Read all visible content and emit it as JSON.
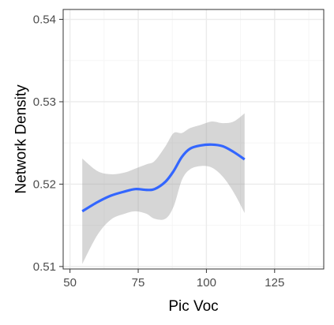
{
  "chart_data": {
    "type": "line",
    "title": "",
    "xlabel": "Pic Voc",
    "ylabel": "Network Density",
    "xlim": [
      47.5,
      143
    ],
    "ylim": [
      0.5097,
      0.5412
    ],
    "x_ticks": [
      50,
      75,
      100,
      125
    ],
    "x_tick_labels": [
      "50",
      "75",
      "100",
      "125"
    ],
    "y_ticks": [
      0.51,
      0.52,
      0.53,
      0.54
    ],
    "y_tick_labels": [
      "0.51",
      "0.52",
      "0.53",
      "0.54"
    ],
    "grid": true,
    "legend": "none",
    "series": [
      {
        "x": [
          54.5,
          60,
          65,
          70,
          74,
          78,
          81,
          85,
          88,
          91,
          94,
          98,
          102,
          106,
          110,
          114
        ],
        "y": [
          0.5167,
          0.5178,
          0.5186,
          0.5191,
          0.5194,
          0.5193,
          0.5194,
          0.5203,
          0.5216,
          0.5233,
          0.5243,
          0.5247,
          0.5248,
          0.5246,
          0.5239,
          0.523
        ],
        "lower": [
          0.5103,
          0.5138,
          0.5157,
          0.5164,
          0.5167,
          0.5164,
          0.5158,
          0.5158,
          0.5173,
          0.5205,
          0.5218,
          0.5222,
          0.522,
          0.5209,
          0.519,
          0.5165
        ],
        "upper": [
          0.5231,
          0.5216,
          0.5212,
          0.5214,
          0.5219,
          0.5224,
          0.5228,
          0.5246,
          0.5262,
          0.5262,
          0.5268,
          0.5272,
          0.5276,
          0.5274,
          0.5276,
          0.5286
        ]
      }
    ],
    "colors": {
      "line": "#3366ff",
      "ribbon": "#999999",
      "grid_major": "#ebebeb",
      "grid_minor": "#f5f5f5",
      "border": "#333333",
      "tick_text": "#4d4d4d"
    }
  }
}
